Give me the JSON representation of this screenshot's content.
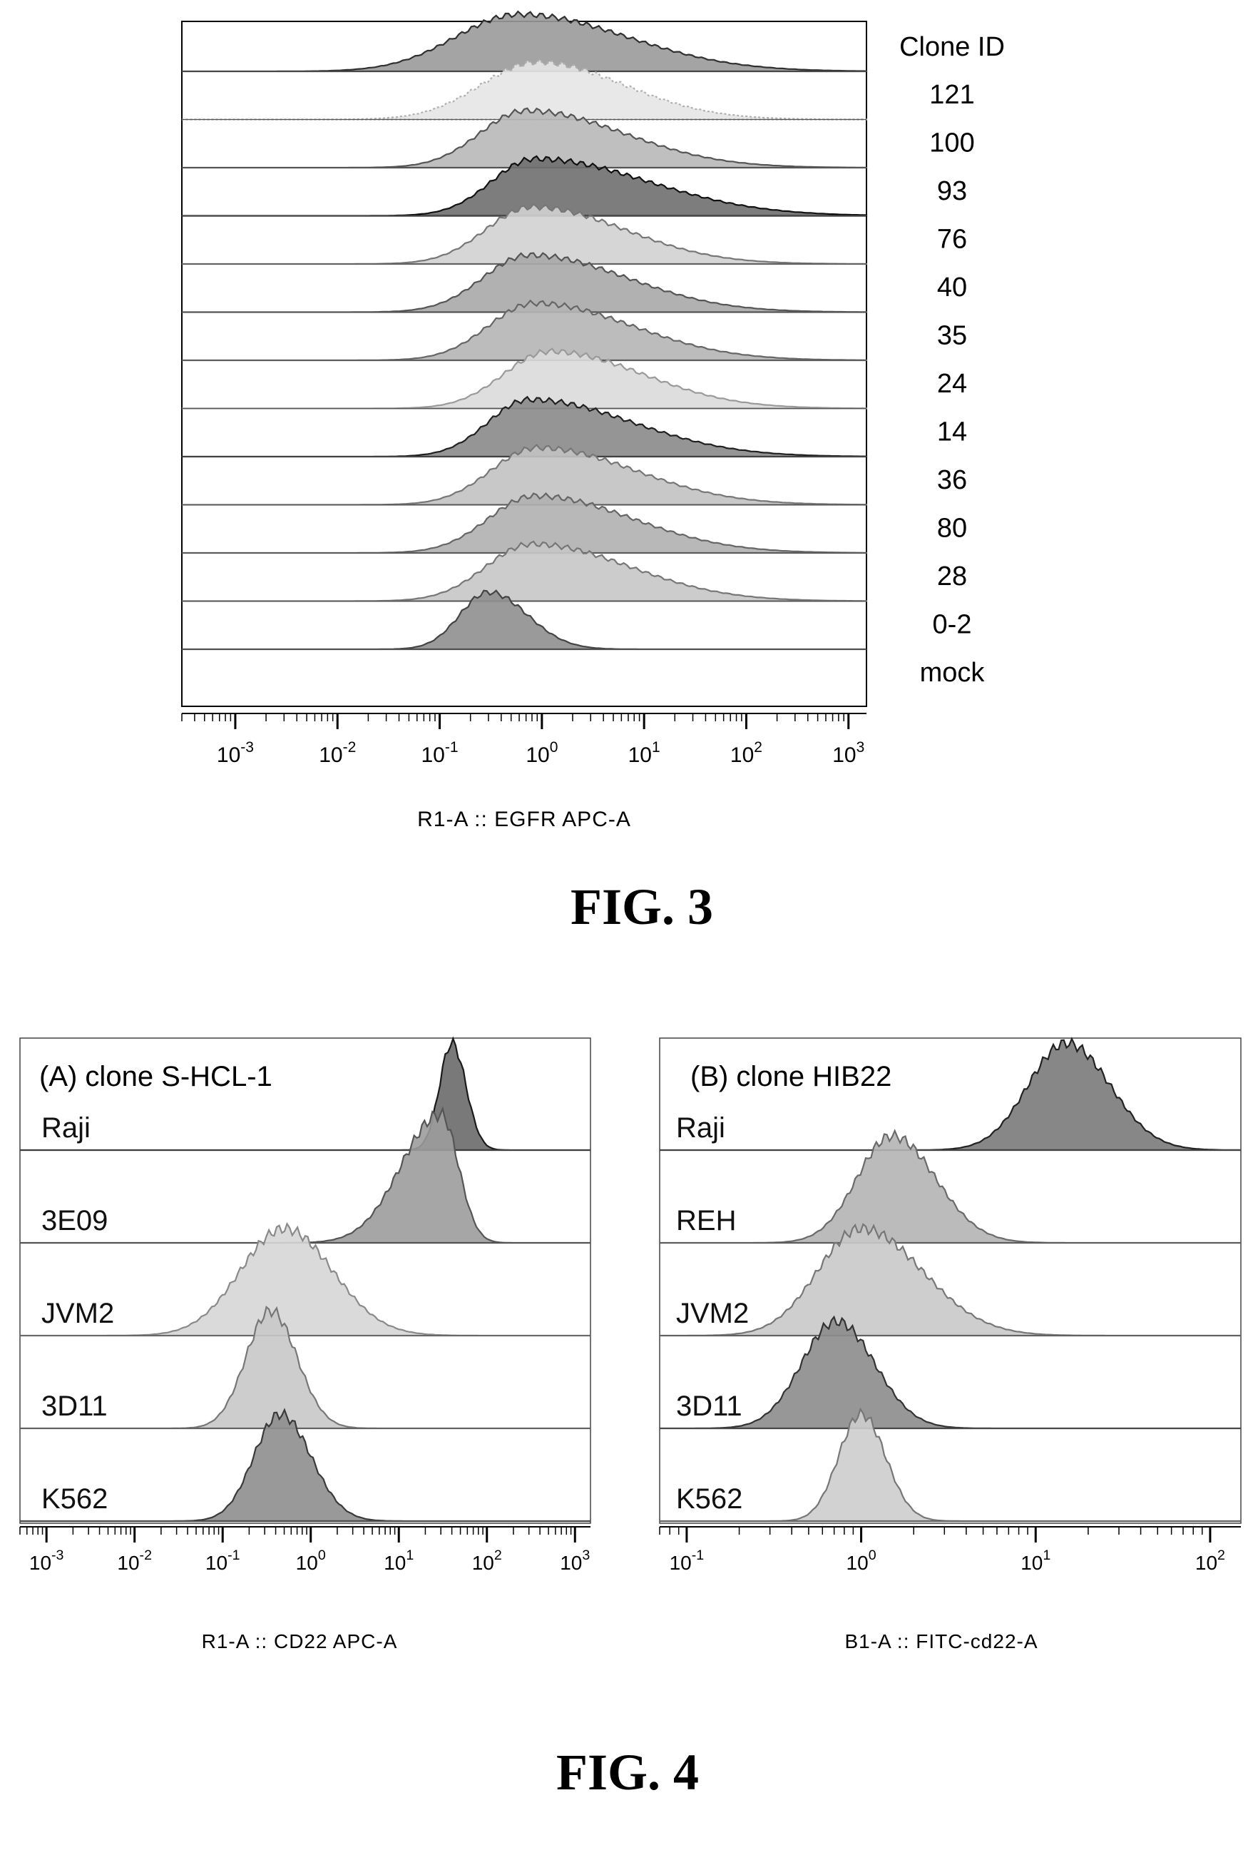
{
  "figures": {
    "fig3_caption": "FIG. 3",
    "fig4_caption": "FIG. 4"
  },
  "chart_data": [
    {
      "type": "area",
      "title": "",
      "xlabel": "R1-A :: EGFR APC-A",
      "ylabel": "",
      "x_scale": "log",
      "xlim": [
        0.0003,
        1500
      ],
      "x_ticks": [
        0.001,
        0.01,
        0.1,
        1,
        10,
        100,
        1000
      ],
      "x_tick_labels": [
        "10^-3",
        "10^-2",
        "10^-1",
        "10^0",
        "10^1",
        "10^2",
        "10^3"
      ],
      "legend_title": "Clone ID",
      "legend_position": "right",
      "grid": false,
      "series": [
        {
          "name": "121",
          "peak": 0.6,
          "width": 0.62,
          "right_tail": 1.05,
          "fill": "#9a9a9a",
          "stroke": "#303030",
          "offset_index": 0,
          "color_by_row": "#9a9a9a"
        },
        {
          "name": "100",
          "peak": 0.9,
          "width": 0.55,
          "right_tail": 0.85,
          "fill": "#e6e6e6",
          "stroke": "#b0b0b0",
          "offset_index": 1,
          "dotted": true
        },
        {
          "name": "93",
          "peak": 0.7,
          "width": 0.45,
          "right_tail": 0.95,
          "fill": "#b8b8b8",
          "stroke": "#555555",
          "offset_index": 2
        },
        {
          "name": "76",
          "peak": 0.85,
          "width": 0.42,
          "right_tail": 1.1,
          "fill": "#6f6f6f",
          "stroke": "#111111",
          "offset_index": 3
        },
        {
          "name": "40",
          "peak": 0.8,
          "width": 0.45,
          "right_tail": 0.9,
          "fill": "#d2d2d2",
          "stroke": "#777777",
          "offset_index": 4
        },
        {
          "name": "35",
          "peak": 0.75,
          "width": 0.45,
          "right_tail": 0.95,
          "fill": "#a8a8a8",
          "stroke": "#555555",
          "offset_index": 5
        },
        {
          "name": "24",
          "peak": 0.85,
          "width": 0.45,
          "right_tail": 0.95,
          "fill": "#b5b5b5",
          "stroke": "#666666",
          "offset_index": 6
        },
        {
          "name": "14",
          "peak": 1.2,
          "width": 0.45,
          "right_tail": 0.9,
          "fill": "#dadada",
          "stroke": "#9a9a9a",
          "offset_index": 7
        },
        {
          "name": "36",
          "peak": 0.75,
          "width": 0.4,
          "right_tail": 1.0,
          "fill": "#8a8a8a",
          "stroke": "#202020",
          "offset_index": 8
        },
        {
          "name": "80",
          "peak": 0.9,
          "width": 0.45,
          "right_tail": 0.95,
          "fill": "#c2c2c2",
          "stroke": "#777777",
          "offset_index": 9
        },
        {
          "name": "28",
          "peak": 0.85,
          "width": 0.45,
          "right_tail": 0.95,
          "fill": "#b0b0b0",
          "stroke": "#666666",
          "offset_index": 10
        },
        {
          "name": "0-2",
          "peak": 0.8,
          "width": 0.45,
          "right_tail": 0.95,
          "fill": "#c6c6c6",
          "stroke": "#777777",
          "offset_index": 11
        },
        {
          "name": "mock",
          "peak": 0.3,
          "width": 0.28,
          "right_tail": 0.38,
          "fill": "#8f8f8f",
          "stroke": "#444444",
          "offset_index": 12
        }
      ]
    },
    {
      "type": "area",
      "title": "(A) clone S-HCL-1",
      "xlabel": "R1-A :: CD22 APC-A",
      "ylabel": "",
      "x_scale": "log",
      "xlim": [
        0.0005,
        1500
      ],
      "x_ticks": [
        0.001,
        0.01,
        0.1,
        1,
        10,
        100,
        1000
      ],
      "x_tick_labels": [
        "10^-3",
        "10^-2",
        "10^-1",
        "10^0",
        "10^1",
        "10^2",
        "10^3"
      ],
      "grid": false,
      "series": [
        {
          "name": "Raji",
          "peak": 40,
          "width": 0.14,
          "right_tail": 0.16,
          "fill": "#6a6a6a",
          "stroke": "#1a1a1a",
          "offset_index": 0,
          "height": 1.0
        },
        {
          "name": "3E09",
          "peak": 30,
          "width": 0.45,
          "right_tail": 0.2,
          "fill": "#9c9c9c",
          "stroke": "#555555",
          "offset_index": 1,
          "height": 1.2
        },
        {
          "name": "JVM2",
          "peak": 0.5,
          "width": 0.5,
          "right_tail": 0.55,
          "fill": "#d6d6d6",
          "stroke": "#8a8a8a",
          "offset_index": 2,
          "height": 1.0
        },
        {
          "name": "3D11",
          "peak": 0.35,
          "width": 0.28,
          "right_tail": 0.3,
          "fill": "#c8c8c8",
          "stroke": "#777777",
          "offset_index": 3,
          "height": 1.1
        },
        {
          "name": "K562",
          "peak": 0.45,
          "width": 0.3,
          "right_tail": 0.35,
          "fill": "#8e8e8e",
          "stroke": "#3a3a3a",
          "offset_index": 4,
          "height": 1.0
        }
      ]
    },
    {
      "type": "area",
      "title": "(B) clone HIB22",
      "xlabel": "B1-A :: FITC-cd22-A",
      "ylabel": "",
      "x_scale": "log",
      "xlim": [
        0.07,
        150
      ],
      "x_ticks": [
        0.1,
        1,
        10,
        100
      ],
      "x_tick_labels": [
        "10^-1",
        "10^0",
        "10^1",
        "10^2"
      ],
      "grid": false,
      "series": [
        {
          "name": "Raji",
          "peak": 15,
          "width": 0.22,
          "right_tail": 0.25,
          "fill": "#7a7a7a",
          "stroke": "#222222",
          "offset_index": 0,
          "height": 1.0
        },
        {
          "name": "REH",
          "peak": 1.5,
          "width": 0.2,
          "right_tail": 0.25,
          "fill": "#b4b4b4",
          "stroke": "#6a6a6a",
          "offset_index": 1,
          "height": 1.0
        },
        {
          "name": "JVM2",
          "peak": 1.0,
          "width": 0.25,
          "right_tail": 0.35,
          "fill": "#c9c9c9",
          "stroke": "#777777",
          "offset_index": 2,
          "height": 1.0
        },
        {
          "name": "3D11",
          "peak": 0.72,
          "width": 0.2,
          "right_tail": 0.22,
          "fill": "#8c8c8c",
          "stroke": "#333333",
          "offset_index": 3,
          "height": 1.0
        },
        {
          "name": "K562",
          "peak": 1.0,
          "width": 0.13,
          "right_tail": 0.14,
          "fill": "#cdcdcd",
          "stroke": "#777777",
          "offset_index": 4,
          "height": 1.0
        }
      ]
    }
  ]
}
